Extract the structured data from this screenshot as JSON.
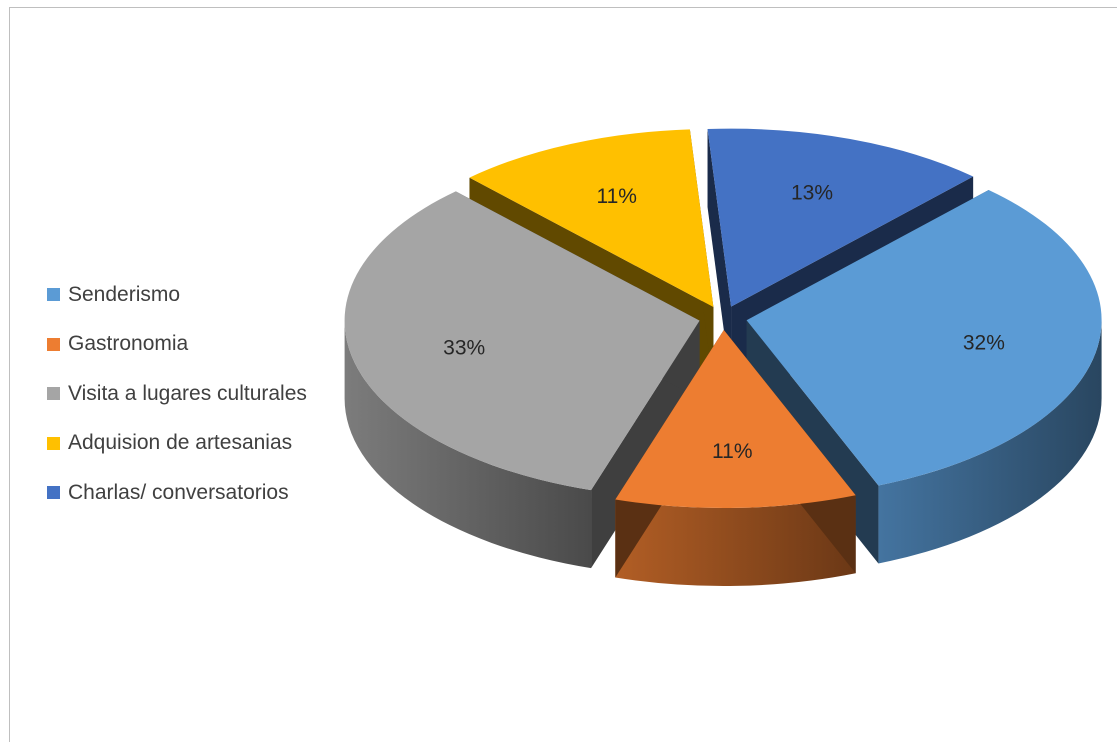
{
  "chart_data": {
    "type": "pie",
    "title": "",
    "legend_position": "left",
    "slices": [
      {
        "label": "Senderismo",
        "value": 32,
        "value_label": "32%",
        "color": "#5b9bd5"
      },
      {
        "label": "Gastronomia",
        "value": 11,
        "value_label": "11%",
        "color": "#ed7d31"
      },
      {
        "label": "Visita a lugares culturales",
        "value": 33,
        "value_label": "33%",
        "color": "#a5a5a5"
      },
      {
        "label": "Adquision de artesanias",
        "value": 11,
        "value_label": "11%",
        "color": "#ffc000"
      },
      {
        "label": "Charlas/ conversatorios",
        "value": 13,
        "value_label": "13%",
        "color": "#4472c4"
      }
    ]
  }
}
